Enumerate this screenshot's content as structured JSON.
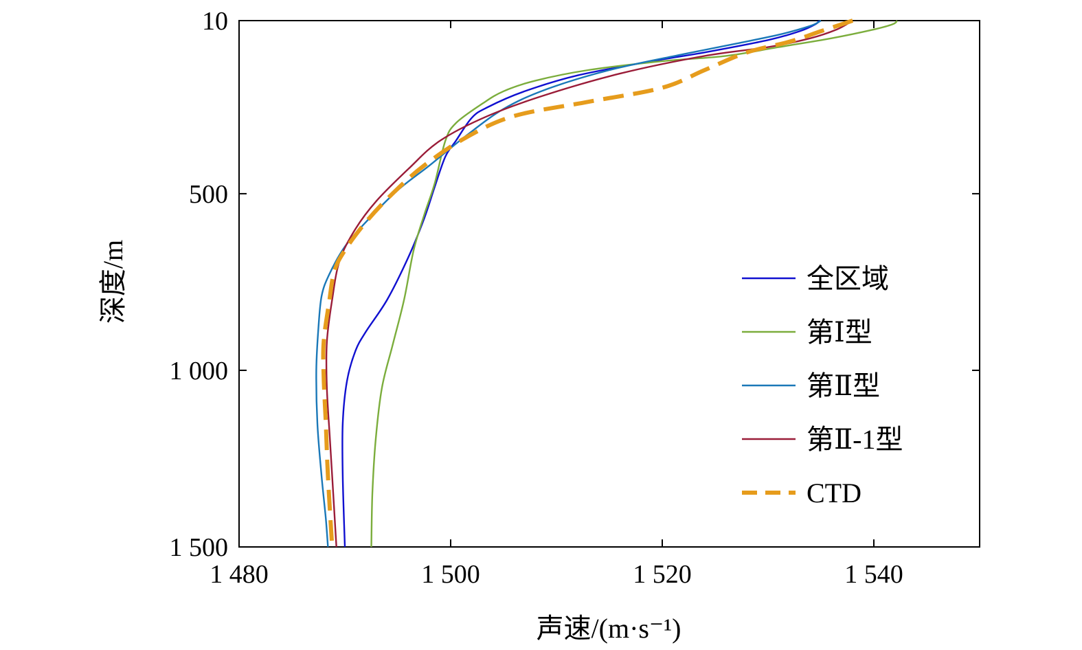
{
  "chart_data": {
    "type": "line",
    "xlabel": "声速/(m·s⁻¹)",
    "ylabel": "深度/m",
    "xlim": [
      1480,
      1550
    ],
    "ylim": [
      10,
      1500
    ],
    "y_inverted": true,
    "x_ticks": [
      1480,
      1500,
      1520,
      1540
    ],
    "x_tick_labels": [
      "1 480",
      "1 500",
      "1 520",
      "1 540"
    ],
    "y_ticks": [
      10,
      500,
      1000,
      1500
    ],
    "y_tick_labels": [
      "10",
      "500",
      "1 000",
      "1 500"
    ],
    "grid": false,
    "legend_position": "right",
    "series": [
      {
        "name": "全区域",
        "color": "#1010d0",
        "dash": "solid",
        "points": [
          [
            1534.8,
            10
          ],
          [
            1534.5,
            20
          ],
          [
            1533.0,
            40
          ],
          [
            1530.0,
            65
          ],
          [
            1524.0,
            100
          ],
          [
            1519.0,
            125
          ],
          [
            1512.0,
            165
          ],
          [
            1507.0,
            210
          ],
          [
            1503.5,
            255
          ],
          [
            1502.0,
            285
          ],
          [
            1500.5,
            350
          ],
          [
            1499.5,
            395
          ],
          [
            1498.5,
            480
          ],
          [
            1497.5,
            570
          ],
          [
            1496.0,
            680
          ],
          [
            1494.0,
            800
          ],
          [
            1492.0,
            890
          ],
          [
            1491.0,
            945
          ],
          [
            1490.2,
            1030
          ],
          [
            1489.8,
            1150
          ],
          [
            1489.8,
            1300
          ],
          [
            1490.0,
            1500
          ]
        ]
      },
      {
        "name": "第Ⅰ型",
        "color": "#7bad3c",
        "dash": "solid",
        "points": [
          [
            1542.2,
            10
          ],
          [
            1541.8,
            20
          ],
          [
            1540.0,
            35
          ],
          [
            1536.0,
            60
          ],
          [
            1531.0,
            85
          ],
          [
            1526.0,
            110
          ],
          [
            1520.0,
            125
          ],
          [
            1513.0,
            150
          ],
          [
            1508.0,
            180
          ],
          [
            1505.0,
            210
          ],
          [
            1503.0,
            245
          ],
          [
            1500.5,
            300
          ],
          [
            1499.5,
            350
          ],
          [
            1498.5,
            470
          ],
          [
            1497.5,
            560
          ],
          [
            1496.5,
            660
          ],
          [
            1495.6,
            800
          ],
          [
            1494.5,
            930
          ],
          [
            1493.5,
            1050
          ],
          [
            1492.9,
            1200
          ],
          [
            1492.6,
            1350
          ],
          [
            1492.5,
            1500
          ]
        ]
      },
      {
        "name": "第Ⅱ型",
        "color": "#1a78b8",
        "dash": "solid",
        "points": [
          [
            1535.0,
            10
          ],
          [
            1534.0,
            25
          ],
          [
            1531.0,
            50
          ],
          [
            1527.0,
            75
          ],
          [
            1522.0,
            105
          ],
          [
            1515.0,
            150
          ],
          [
            1509.0,
            205
          ],
          [
            1505.0,
            260
          ],
          [
            1501.5,
            335
          ],
          [
            1498.0,
            420
          ],
          [
            1495.0,
            490
          ],
          [
            1492.0,
            580
          ],
          [
            1490.0,
            650
          ],
          [
            1488.5,
            730
          ],
          [
            1487.8,
            790
          ],
          [
            1487.5,
            880
          ],
          [
            1487.3,
            1000
          ],
          [
            1487.4,
            1150
          ],
          [
            1487.8,
            1300
          ],
          [
            1488.2,
            1420
          ],
          [
            1488.4,
            1500
          ]
        ]
      },
      {
        "name": "第Ⅱ-1型",
        "color": "#9a1c38",
        "dash": "solid",
        "points": [
          [
            1538.0,
            10
          ],
          [
            1536.5,
            35
          ],
          [
            1534.0,
            60
          ],
          [
            1530.0,
            85
          ],
          [
            1524.0,
            110
          ],
          [
            1516.0,
            160
          ],
          [
            1509.0,
            220
          ],
          [
            1503.5,
            280
          ],
          [
            1499.0,
            350
          ],
          [
            1496.0,
            430
          ],
          [
            1493.0,
            520
          ],
          [
            1491.0,
            600
          ],
          [
            1489.5,
            690
          ],
          [
            1488.8,
            800
          ],
          [
            1488.3,
            920
          ],
          [
            1488.3,
            1050
          ],
          [
            1488.6,
            1200
          ],
          [
            1488.9,
            1350
          ],
          [
            1489.2,
            1500
          ]
        ]
      },
      {
        "name": "CTD",
        "color": "#e69c1c",
        "dash": "dashed",
        "points": [
          [
            1538.0,
            10
          ],
          [
            1535.0,
            40
          ],
          [
            1532.0,
            70
          ],
          [
            1528.0,
            100
          ],
          [
            1524.0,
            150
          ],
          [
            1520.0,
            200
          ],
          [
            1513.0,
            240
          ],
          [
            1506.0,
            280
          ],
          [
            1501.5,
            340
          ],
          [
            1497.5,
            420
          ],
          [
            1494.5,
            500
          ],
          [
            1492.0,
            580
          ],
          [
            1490.0,
            660
          ],
          [
            1489.0,
            720
          ],
          [
            1488.5,
            810
          ],
          [
            1488.0,
            920
          ],
          [
            1488.0,
            1020
          ],
          [
            1488.2,
            1150
          ],
          [
            1488.4,
            1300
          ],
          [
            1488.8,
            1500
          ]
        ]
      }
    ]
  }
}
